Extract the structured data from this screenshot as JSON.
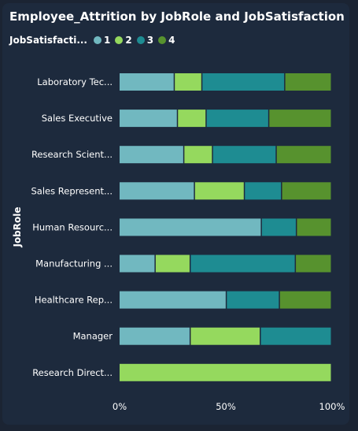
{
  "title": "Employee_Attrition by JobRole and JobSatisfaction",
  "legend": {
    "title": "JobSatisfacti...",
    "items": [
      {
        "label": "1",
        "color": "#71b8c0"
      },
      {
        "label": "2",
        "color": "#95d95e"
      },
      {
        "label": "3",
        "color": "#1e8c92"
      },
      {
        "label": "4",
        "color": "#57922e"
      }
    ]
  },
  "chart_data": {
    "type": "bar",
    "orientation": "horizontal",
    "stacked": "100%",
    "ylabel": "JobRole",
    "categories": [
      "Laboratory Tec...",
      "Sales Executive",
      "Research Scient...",
      "Sales Represent...",
      "Human Resourc...",
      "Manufacturing ...",
      "Healthcare Rep...",
      "Manager",
      "Research Direct..."
    ],
    "series": [
      {
        "name": "1",
        "color": "#71b8c0",
        "values": [
          26.0,
          27.5,
          30.5,
          35.5,
          67.0,
          17.0,
          50.5,
          33.5,
          0
        ]
      },
      {
        "name": "2",
        "color": "#95d95e",
        "values": [
          13.0,
          13.5,
          13.5,
          23.5,
          0,
          16.5,
          0,
          33.0,
          100
        ]
      },
      {
        "name": "3",
        "color": "#1e8c92",
        "values": [
          39.0,
          29.5,
          30.0,
          17.5,
          16.5,
          49.5,
          25.0,
          33.5,
          0
        ]
      },
      {
        "name": "4",
        "color": "#57922e",
        "values": [
          22.0,
          29.5,
          26.0,
          23.5,
          16.5,
          17.0,
          24.5,
          0,
          0
        ]
      }
    ],
    "xticks": [
      "0%",
      "50%",
      "100%"
    ],
    "xlim": [
      0,
      100
    ],
    "grid": false,
    "legend_position": "top-left"
  }
}
